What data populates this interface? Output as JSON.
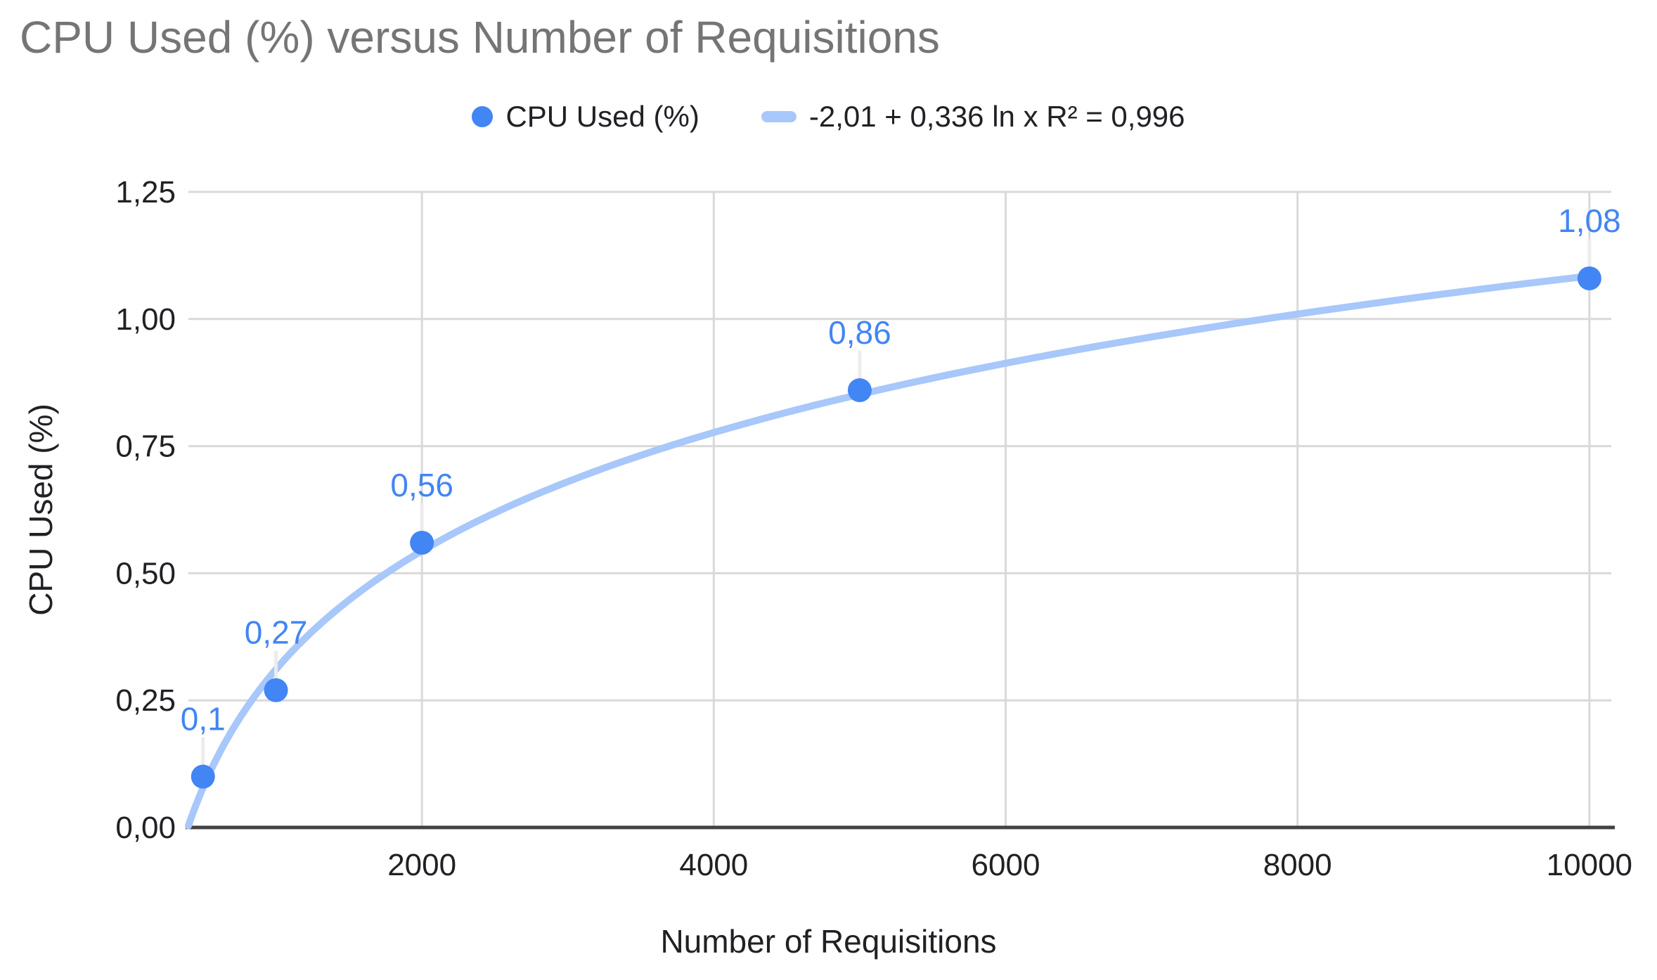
{
  "title": "CPU Used (%) versus Number of Requisitions",
  "legend": {
    "series_label": "CPU Used (%)",
    "trendline_label": "-2,01 + 0,336 ln x R² = 0,996"
  },
  "axes": {
    "x_title": "Number of Requisitions",
    "y_title": "CPU Used (%)"
  },
  "colors": {
    "point": "#4285F4",
    "data_label": "#4285F4",
    "trendline": "#A8C7FA",
    "title_text": "#757575",
    "axis_text": "#202124",
    "gridline": "#D9D9D9",
    "axis_line": "#424242",
    "leader_line": "#ECECEC"
  },
  "chart_data": {
    "type": "scatter",
    "title": "CPU Used (%) versus Number of Requisitions",
    "xlabel": "Number of Requisitions",
    "ylabel": "CPU Used (%)",
    "grid": true,
    "legend_position": "top",
    "x_axis": {
      "min": 400,
      "max": 10150,
      "ticks": [
        {
          "v": 2000,
          "label": "2000"
        },
        {
          "v": 4000,
          "label": "4000"
        },
        {
          "v": 6000,
          "label": "6000"
        },
        {
          "v": 8000,
          "label": "8000"
        },
        {
          "v": 10000,
          "label": "10000"
        }
      ]
    },
    "y_axis": {
      "min": 0,
      "max": 1.25,
      "ticks": [
        {
          "v": 0.0,
          "label": "0,00"
        },
        {
          "v": 0.25,
          "label": "0,25"
        },
        {
          "v": 0.5,
          "label": "0,50"
        },
        {
          "v": 0.75,
          "label": "0,75"
        },
        {
          "v": 1.0,
          "label": "1,00"
        },
        {
          "v": 1.25,
          "label": "1,25"
        }
      ]
    },
    "series": [
      {
        "name": "CPU Used (%)",
        "points": [
          {
            "x": 500,
            "y": 0.1,
            "label": "0,1"
          },
          {
            "x": 1000,
            "y": 0.27,
            "label": "0,27"
          },
          {
            "x": 2000,
            "y": 0.56,
            "label": "0,56"
          },
          {
            "x": 5000,
            "y": 0.86,
            "label": "0,86"
          },
          {
            "x": 10000,
            "y": 1.08,
            "label": "1,08"
          }
        ]
      }
    ],
    "trendline": {
      "kind": "logarithmic",
      "equation": "-2,01 + 0,336 ln x R² = 0,996",
      "intercept": -2.01,
      "slope": 0.336,
      "r2": 0.996,
      "domain": [
        400,
        10000
      ]
    }
  }
}
